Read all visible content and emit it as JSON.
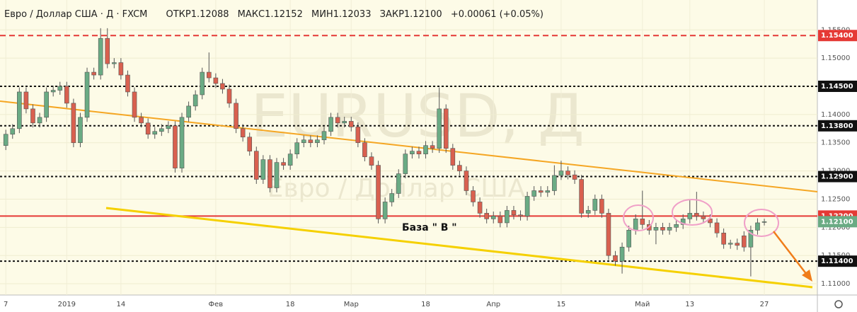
{
  "header": {
    "symbol": "Евро / Доллар США · Д · FXCM",
    "open_label": "ОТКР",
    "open": "1.12088",
    "high_label": "МАКС",
    "high": "1.12152",
    "low_label": "МИН",
    "low": "1.12033",
    "close_label": "ЗАКР",
    "close": "1.12100",
    "change": "+0.00061 (+0.05%)"
  },
  "watermark": {
    "symbol": "EURUSD, Д",
    "description": "Евро / Доллар США"
  },
  "annotation": "База \" В \"",
  "chart_data": {
    "type": "candlestick",
    "up_color": "#6aab84",
    "down_color": "#d9604f",
    "categories": [
      "7",
      null,
      null,
      null,
      null,
      null,
      null,
      null,
      null,
      "2019",
      null,
      null,
      null,
      null,
      null,
      null,
      null,
      "14",
      null,
      null,
      null,
      null,
      null,
      null,
      null,
      null,
      null,
      null,
      null,
      null,
      null,
      "Фев",
      null,
      null,
      null,
      null,
      null,
      null,
      null,
      null,
      null,
      null,
      "18",
      null,
      null,
      null,
      null,
      null,
      null,
      null,
      null,
      "Мар",
      null,
      null,
      null,
      null,
      null,
      null,
      null,
      null,
      null,
      null,
      "18",
      null,
      null,
      null,
      null,
      null,
      null,
      null,
      null,
      null,
      "Апр",
      null,
      null,
      null,
      null,
      null,
      null,
      null,
      null,
      null,
      "15",
      null,
      null,
      null,
      null,
      null,
      null,
      null,
      null,
      null,
      null,
      null,
      "Май",
      null,
      null,
      null,
      null,
      null,
      null,
      "13",
      null,
      null,
      null,
      null,
      null,
      null,
      null,
      null,
      null,
      null,
      "27"
    ],
    "open": [
      1.1345,
      1.1365,
      1.1375,
      1.144,
      1.141,
      1.1385,
      1.1395,
      1.144,
      1.1443,
      1.145,
      1.142,
      1.135,
      1.1395,
      1.1475,
      1.147,
      1.1535,
      1.149,
      1.1492,
      1.147,
      1.144,
      1.1395,
      1.1385,
      1.1365,
      1.137,
      1.1375,
      1.138,
      1.1305,
      1.1395,
      1.1415,
      1.1435,
      1.1475,
      1.1465,
      1.1455,
      1.1445,
      1.142,
      1.1375,
      1.136,
      1.1335,
      1.1285,
      1.132,
      1.127,
      1.1315,
      1.131,
      1.133,
      1.135,
      1.1355,
      1.135,
      1.1355,
      1.137,
      1.1395,
      1.1385,
      1.1388,
      1.1378,
      1.135,
      1.1325,
      1.131,
      1.1215,
      1.1245,
      1.126,
      1.1295,
      1.133,
      1.1335,
      1.133,
      1.1345,
      1.134,
      1.141,
      1.134,
      1.131,
      1.13,
      1.1265,
      1.1245,
      1.1225,
      1.1215,
      1.122,
      1.1208,
      1.123,
      1.1222,
      1.122,
      1.1255,
      1.1265,
      1.1262,
      1.1265,
      1.1292,
      1.13,
      1.1293,
      1.1285,
      1.1225,
      1.123,
      1.125,
      1.1225,
      1.115,
      1.114,
      1.1165,
      1.1195,
      1.1215,
      1.1205,
      1.1195,
      1.12,
      1.1195,
      1.12,
      1.1205,
      1.1215,
      1.1225,
      1.122,
      1.1215,
      1.1208,
      1.119,
      1.117,
      1.1172,
      1.1185,
      1.1165,
      1.1195,
      1.12088
    ],
    "high": [
      1.1373,
      1.1383,
      1.1448,
      1.1448,
      1.1418,
      1.1403,
      1.1448,
      1.1451,
      1.1458,
      1.1458,
      1.1428,
      1.1403,
      1.1483,
      1.1483,
      1.1553,
      1.1553,
      1.15,
      1.15,
      1.1478,
      1.1448,
      1.1403,
      1.1393,
      1.1378,
      1.1383,
      1.1388,
      1.1388,
      1.1403,
      1.1423,
      1.1443,
      1.1483,
      1.151,
      1.1473,
      1.1463,
      1.1453,
      1.1428,
      1.1383,
      1.1368,
      1.1343,
      1.1328,
      1.1328,
      1.1323,
      1.1323,
      1.1338,
      1.1358,
      1.1363,
      1.1363,
      1.1363,
      1.1378,
      1.1403,
      1.1403,
      1.1396,
      1.1396,
      1.1386,
      1.1358,
      1.1333,
      1.1318,
      1.1253,
      1.1268,
      1.1303,
      1.1338,
      1.1343,
      1.1343,
      1.1353,
      1.1353,
      1.1448,
      1.1418,
      1.1348,
      1.1318,
      1.1308,
      1.1273,
      1.1253,
      1.1233,
      1.1228,
      1.1228,
      1.1238,
      1.1238,
      1.123,
      1.1263,
      1.1273,
      1.1273,
      1.1273,
      1.131,
      1.1318,
      1.1308,
      1.1301,
      1.1293,
      1.1238,
      1.1258,
      1.1258,
      1.1233,
      1.1158,
      1.1173,
      1.1203,
      1.1223,
      1.1265,
      1.1213,
      1.1208,
      1.1208,
      1.1208,
      1.1213,
      1.1223,
      1.125,
      1.1263,
      1.1228,
      1.1223,
      1.1216,
      1.1198,
      1.1178,
      1.118,
      1.1193,
      1.1203,
      1.1216,
      1.12152
    ],
    "low": [
      1.1337,
      1.1357,
      1.1367,
      1.1402,
      1.1377,
      1.1377,
      1.1387,
      1.1432,
      1.1435,
      1.1412,
      1.1342,
      1.1342,
      1.1387,
      1.1462,
      1.1462,
      1.1482,
      1.1482,
      1.1462,
      1.1432,
      1.1387,
      1.1377,
      1.1357,
      1.1357,
      1.1362,
      1.1367,
      1.1297,
      1.1297,
      1.1387,
      1.1407,
      1.1427,
      1.1457,
      1.1447,
      1.1437,
      1.1412,
      1.1367,
      1.1352,
      1.1327,
      1.1277,
      1.1277,
      1.1262,
      1.1262,
      1.1302,
      1.1302,
      1.1322,
      1.1342,
      1.1342,
      1.1342,
      1.1347,
      1.1362,
      1.1377,
      1.1377,
      1.137,
      1.1342,
      1.1317,
      1.1302,
      1.1207,
      1.1207,
      1.1237,
      1.1252,
      1.1287,
      1.1322,
      1.1322,
      1.1322,
      1.1332,
      1.1332,
      1.1332,
      1.1302,
      1.1292,
      1.1257,
      1.1237,
      1.1217,
      1.1207,
      1.1207,
      1.12,
      1.12,
      1.1214,
      1.1212,
      1.1212,
      1.1247,
      1.1254,
      1.1254,
      1.1257,
      1.1284,
      1.1285,
      1.1277,
      1.1217,
      1.1217,
      1.1222,
      1.1217,
      1.1142,
      1.1132,
      1.1118,
      1.1157,
      1.1187,
      1.1197,
      1.1187,
      1.117,
      1.1187,
      1.1187,
      1.1192,
      1.1197,
      1.1207,
      1.1212,
      1.1207,
      1.12,
      1.1182,
      1.1162,
      1.1162,
      1.116,
      1.1157,
      1.1113,
      1.1187,
      1.12033
    ],
    "close": [
      1.1365,
      1.1375,
      1.144,
      1.141,
      1.1385,
      1.1395,
      1.144,
      1.1443,
      1.145,
      1.142,
      1.135,
      1.1395,
      1.1475,
      1.147,
      1.1535,
      1.149,
      1.1492,
      1.147,
      1.144,
      1.1395,
      1.1385,
      1.1365,
      1.137,
      1.1375,
      1.138,
      1.1305,
      1.1395,
      1.1415,
      1.1435,
      1.1475,
      1.1465,
      1.1455,
      1.1445,
      1.142,
      1.1375,
      1.136,
      1.1335,
      1.1285,
      1.132,
      1.127,
      1.1315,
      1.131,
      1.133,
      1.135,
      1.1355,
      1.135,
      1.1355,
      1.137,
      1.1395,
      1.1385,
      1.1388,
      1.1378,
      1.135,
      1.1325,
      1.131,
      1.1215,
      1.1245,
      1.126,
      1.1295,
      1.133,
      1.1335,
      1.133,
      1.1345,
      1.134,
      1.141,
      1.134,
      1.131,
      1.13,
      1.1265,
      1.1245,
      1.1225,
      1.1215,
      1.122,
      1.1208,
      1.123,
      1.1222,
      1.122,
      1.1255,
      1.1265,
      1.1262,
      1.1265,
      1.1292,
      1.13,
      1.1293,
      1.1285,
      1.1225,
      1.123,
      1.125,
      1.1225,
      1.115,
      1.114,
      1.1165,
      1.1195,
      1.1215,
      1.1205,
      1.1195,
      1.12,
      1.1195,
      1.12,
      1.1205,
      1.1215,
      1.1225,
      1.122,
      1.1215,
      1.1208,
      1.119,
      1.117,
      1.1172,
      1.1168,
      1.1165,
      1.1195,
      1.1208,
      1.121
    ],
    "ylim": [
      1.108,
      1.1603
    ],
    "yticks": [
      {
        "value": 1.11,
        "label": "1.11000"
      },
      {
        "value": 1.115,
        "label": "1.11500"
      },
      {
        "value": 1.12,
        "label": "1.12000"
      },
      {
        "value": 1.125,
        "label": "1.12500"
      },
      {
        "value": 1.13,
        "label": "1.13000"
      },
      {
        "value": 1.135,
        "label": "1.13500"
      },
      {
        "value": 1.14,
        "label": "1.14000"
      },
      {
        "value": 1.145,
        "label": "1.14500"
      },
      {
        "value": 1.15,
        "label": "1.15000"
      },
      {
        "value": 1.155,
        "label": "1.15500"
      }
    ],
    "levels": [
      {
        "value": 1.154,
        "label": "1.15400",
        "color": "#e53935",
        "style": "dashed"
      },
      {
        "value": 1.145,
        "label": "1.14500",
        "color": "#111111",
        "style": "dotted"
      },
      {
        "value": 1.138,
        "label": "1.13800",
        "color": "#111111",
        "style": "dotted"
      },
      {
        "value": 1.129,
        "label": "1.12900",
        "color": "#111111",
        "style": "dotted"
      },
      {
        "value": 1.122,
        "label": "1.12200",
        "color": "#e53935",
        "style": "solid"
      },
      {
        "value": 1.114,
        "label": "1.11400",
        "color": "#111111",
        "style": "dotted"
      }
    ],
    "price_label": {
      "value": 1.121,
      "label": "1.12100",
      "color": "#6aab84"
    }
  }
}
